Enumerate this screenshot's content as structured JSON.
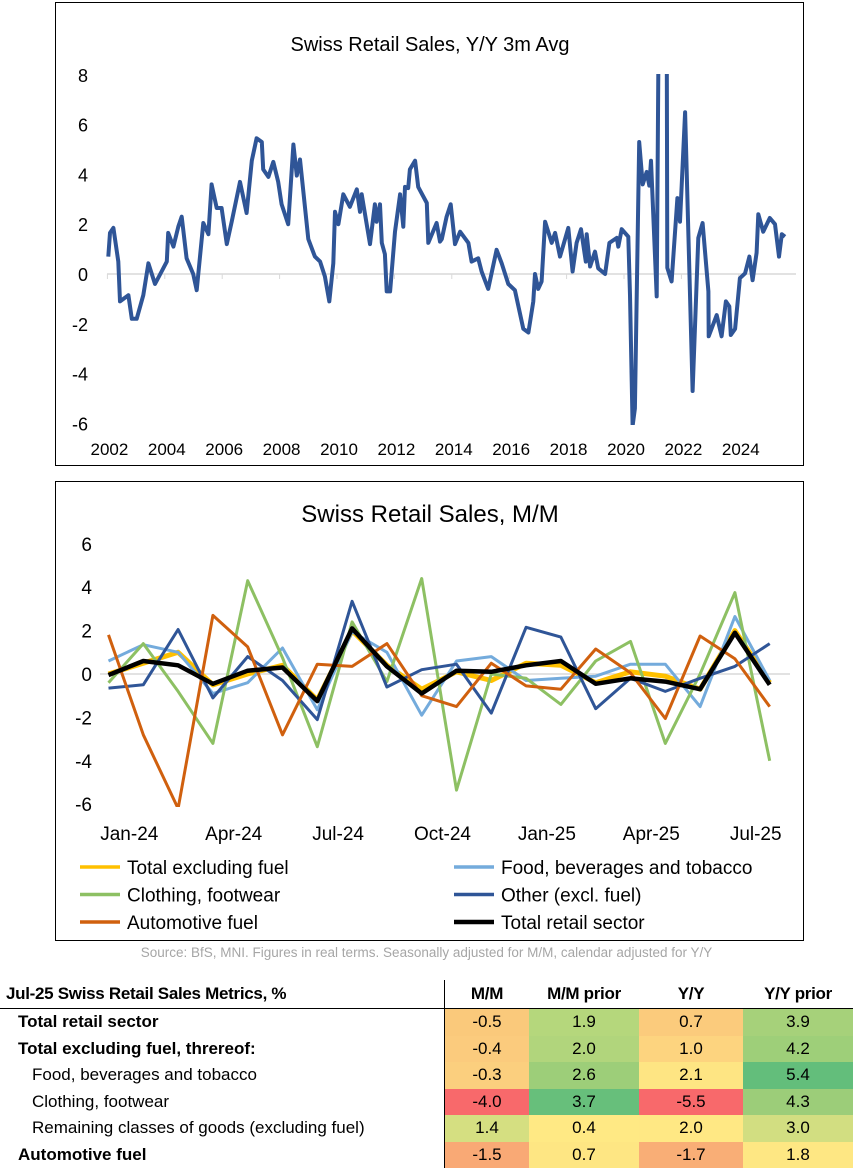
{
  "chart_data": [
    {
      "type": "line",
      "title": "Swiss Retail Sales, Y/Y 3m Avg",
      "xlim": [
        2002,
        2026
      ],
      "ylim": [
        -6,
        8
      ],
      "x_ticks": [
        "2002",
        "2004",
        "2006",
        "2008",
        "2010",
        "2012",
        "2014",
        "2016",
        "2018",
        "2020",
        "2022",
        "2024"
      ],
      "y_ticks": [
        "-6",
        "-4",
        "-2",
        "0",
        "2",
        "4",
        "6",
        "8"
      ],
      "grid": false,
      "line_color": "#2F5597",
      "points": [
        [
          2002.03,
          0.7
        ],
        [
          2002.09,
          1.65
        ],
        [
          2002.21,
          1.85
        ],
        [
          2002.38,
          0.5
        ],
        [
          2002.44,
          -1.1
        ],
        [
          2002.73,
          -0.85
        ],
        [
          2002.85,
          -1.8
        ],
        [
          2003.02,
          -1.8
        ],
        [
          2003.25,
          -0.85
        ],
        [
          2003.43,
          0.43
        ],
        [
          2003.66,
          -0.4
        ],
        [
          2003.89,
          0.1
        ],
        [
          2004.07,
          0.5
        ],
        [
          2004.12,
          1.65
        ],
        [
          2004.3,
          1.1
        ],
        [
          2004.47,
          1.9
        ],
        [
          2004.59,
          2.3
        ],
        [
          2004.76,
          0.63
        ],
        [
          2004.99,
          0
        ],
        [
          2005.11,
          -0.65
        ],
        [
          2005.34,
          2.05
        ],
        [
          2005.52,
          1.6
        ],
        [
          2005.63,
          3.6
        ],
        [
          2005.81,
          2.65
        ],
        [
          2005.98,
          2.65
        ],
        [
          2006.16,
          1.2
        ],
        [
          2006.33,
          2.1
        ],
        [
          2006.62,
          3.7
        ],
        [
          2006.85,
          2.45
        ],
        [
          2007.03,
          4.55
        ],
        [
          2007.2,
          5.45
        ],
        [
          2007.38,
          5.3
        ],
        [
          2007.43,
          4.2
        ],
        [
          2007.61,
          3.9
        ],
        [
          2007.78,
          4.5
        ],
        [
          2007.95,
          3.7
        ],
        [
          2008.07,
          2.8
        ],
        [
          2008.3,
          2.0
        ],
        [
          2008.48,
          5.2
        ],
        [
          2008.6,
          3.95
        ],
        [
          2008.71,
          4.6
        ],
        [
          2009.0,
          1.4
        ],
        [
          2009.23,
          0.7
        ],
        [
          2009.41,
          0.5
        ],
        [
          2009.58,
          -0.1
        ],
        [
          2009.73,
          -1.1
        ],
        [
          2009.87,
          0.43
        ],
        [
          2009.93,
          2.5
        ],
        [
          2010.05,
          2.0
        ],
        [
          2010.22,
          3.2
        ],
        [
          2010.45,
          2.7
        ],
        [
          2010.69,
          3.4
        ],
        [
          2010.8,
          2.5
        ],
        [
          2010.86,
          3.2
        ],
        [
          2011.15,
          1.2
        ],
        [
          2011.32,
          2.8
        ],
        [
          2011.38,
          2.1
        ],
        [
          2011.5,
          2.8
        ],
        [
          2011.56,
          1.25
        ],
        [
          2011.67,
          0.8
        ],
        [
          2011.73,
          -0.7
        ],
        [
          2011.85,
          -0.7
        ],
        [
          2012.02,
          1.7
        ],
        [
          2012.2,
          3.2
        ],
        [
          2012.31,
          1.9
        ],
        [
          2012.37,
          3.5
        ],
        [
          2012.48,
          3.45
        ],
        [
          2012.54,
          4.2
        ],
        [
          2012.72,
          4.55
        ],
        [
          2012.83,
          3.5
        ],
        [
          2013.13,
          2.85
        ],
        [
          2013.18,
          1.25
        ],
        [
          2013.47,
          2.05
        ],
        [
          2013.59,
          1.3
        ],
        [
          2013.65,
          1.4
        ],
        [
          2013.82,
          2.3
        ],
        [
          2013.96,
          2.8
        ],
        [
          2014.11,
          1.2
        ],
        [
          2014.29,
          1.7
        ],
        [
          2014.58,
          1.25
        ],
        [
          2014.69,
          0.5
        ],
        [
          2014.92,
          0.63
        ],
        [
          2015.04,
          0.1
        ],
        [
          2015.27,
          -0.6
        ],
        [
          2015.56,
          0.97
        ],
        [
          2015.74,
          0.43
        ],
        [
          2015.97,
          -0.4
        ],
        [
          2016.2,
          -0.65
        ],
        [
          2016.49,
          -2.2
        ],
        [
          2016.67,
          -2.35
        ],
        [
          2016.84,
          -1.1
        ],
        [
          2016.9,
          0
        ],
        [
          2017.01,
          -0.6
        ],
        [
          2017.13,
          -0.3
        ],
        [
          2017.25,
          2.1
        ],
        [
          2017.48,
          1.25
        ],
        [
          2017.6,
          1.65
        ],
        [
          2017.77,
          0.7
        ],
        [
          2018.06,
          1.85
        ],
        [
          2018.21,
          0.1
        ],
        [
          2018.35,
          1.25
        ],
        [
          2018.5,
          1.8
        ],
        [
          2018.67,
          0.5
        ],
        [
          2018.7,
          1.6
        ],
        [
          2018.82,
          0.3
        ],
        [
          2018.99,
          0.9
        ],
        [
          2019.1,
          0.23
        ],
        [
          2019.34,
          0
        ],
        [
          2019.49,
          1.25
        ],
        [
          2019.75,
          1.45
        ],
        [
          2019.8,
          1.1
        ],
        [
          2019.92,
          1.8
        ],
        [
          2020.15,
          1.5
        ],
        [
          2020.21,
          -0.85
        ],
        [
          2020.3,
          -6.1
        ],
        [
          2020.38,
          -5.4
        ],
        [
          2020.53,
          5.3
        ],
        [
          2020.65,
          3.6
        ],
        [
          2020.79,
          4.1
        ],
        [
          2020.88,
          3.55
        ],
        [
          2020.94,
          4.55
        ],
        [
          2021.14,
          -0.9
        ],
        [
          2021.2,
          8.6
        ],
        [
          2021.49,
          8.6
        ],
        [
          2021.51,
          0.25
        ],
        [
          2021.66,
          -0.3
        ],
        [
          2021.86,
          3.05
        ],
        [
          2021.95,
          2.1
        ],
        [
          2022.13,
          6.5
        ],
        [
          2022.39,
          -4.7
        ],
        [
          2022.59,
          1.45
        ],
        [
          2022.74,
          2.05
        ],
        [
          2022.94,
          -0.7
        ],
        [
          2022.95,
          -2.5
        ],
        [
          2023.23,
          -1.65
        ],
        [
          2023.4,
          -2.5
        ],
        [
          2023.55,
          -1.1
        ],
        [
          2023.67,
          -1.3
        ],
        [
          2023.72,
          -2.45
        ],
        [
          2023.87,
          -2.2
        ],
        [
          2024.04,
          -0.17
        ],
        [
          2024.22,
          0.03
        ],
        [
          2024.37,
          0.7
        ],
        [
          2024.48,
          -0.25
        ],
        [
          2024.62,
          0.85
        ],
        [
          2024.68,
          2.4
        ],
        [
          2024.85,
          1.7
        ],
        [
          2025.08,
          2.25
        ],
        [
          2025.26,
          2.0
        ],
        [
          2025.4,
          0.7
        ],
        [
          2025.5,
          1.6
        ],
        [
          2025.61,
          1.5
        ]
      ]
    },
    {
      "type": "line",
      "title": "Swiss Retail Sales, M/M",
      "ylim": [
        -6,
        6
      ],
      "y_ticks": [
        "-6",
        "-4",
        "-2",
        "0",
        "2",
        "4",
        "6"
      ],
      "categories": [
        "Dec-23",
        "Jan-24",
        "Feb-24",
        "Mar-24",
        "Apr-24",
        "May-24",
        "Jun-24",
        "Jul-24",
        "Aug-24",
        "Sep-24",
        "Oct-24",
        "Nov-24",
        "Dec-24",
        "Jan-25",
        "Feb-25",
        "Mar-25",
        "Apr-25",
        "May-25",
        "Jun-25",
        "Jul-25"
      ],
      "x_tick_labels": {
        "1": "Jan-24",
        "4": "Apr-24",
        "7": "Jul-24",
        "10": "Oct-24",
        "13": "Jan-25",
        "16": "Apr-25",
        "19": "Jul-25"
      },
      "grid": false,
      "legend_position": "bottom",
      "series": [
        {
          "name": "Total excluding fuel",
          "color": "#FFC000",
          "values": [
            0,
            0.5,
            1.0,
            -0.5,
            0,
            0.4,
            -1.2,
            2.0,
            0.4,
            -0.7,
            0.1,
            -0.3,
            0.5,
            0.4,
            -0.4,
            0.1,
            -0.1,
            -0.7,
            2.0,
            -0.4
          ]
        },
        {
          "name": "Food, beverages and tobacco",
          "color": "#74ABDC",
          "values": [
            0.6,
            1.35,
            1.0,
            -0.9,
            -0.4,
            1.2,
            -1.65,
            1.95,
            1.0,
            -1.9,
            0.6,
            0.8,
            -0.3,
            -0.2,
            -0.1,
            0.45,
            0.45,
            -1.5,
            2.65,
            -0.3
          ]
        },
        {
          "name": "Clothing, footwear",
          "color": "#8DC063",
          "values": [
            -0.4,
            1.4,
            -0.8,
            -3.2,
            4.3,
            0.75,
            -3.35,
            2.4,
            -0.35,
            4.4,
            -5.35,
            0,
            -0.2,
            -1.4,
            0.6,
            1.5,
            -3.2,
            0,
            3.75,
            -4.0
          ]
        },
        {
          "name": "Other (excl. fuel)",
          "color": "#2F5597",
          "values": [
            -0.65,
            -0.5,
            2.05,
            -1.1,
            0.8,
            -0.3,
            -2.1,
            3.35,
            -0.6,
            0.2,
            0.45,
            -1.8,
            2.15,
            1.7,
            -1.6,
            -0.2,
            -0.8,
            -0.2,
            0.35,
            1.4
          ]
        },
        {
          "name": "Automotive fuel",
          "color": "#D0600E",
          "values": [
            1.8,
            -2.8,
            -6.2,
            2.7,
            1.25,
            -2.8,
            0.45,
            0.35,
            1.4,
            -1.0,
            -1.5,
            0.5,
            -0.55,
            -0.7,
            1.15,
            0.05,
            -2.05,
            1.75,
            0.7,
            -1.5
          ]
        },
        {
          "name": "Total retail sector",
          "color": "#000000",
          "values": [
            -0.05,
            0.6,
            0.4,
            -0.45,
            0.15,
            0.3,
            -1.25,
            2.1,
            0.35,
            -0.9,
            0.15,
            0.1,
            0.4,
            0.6,
            -0.45,
            -0.2,
            -0.35,
            -0.7,
            1.9,
            -0.5
          ]
        }
      ]
    }
  ],
  "source": "Source: BfS, MNI. Figures in real terms. Seasonally adjusted for M/M, calendar adjusted for Y/Y",
  "table": {
    "title": "Jul-25 Swiss Retail Sales Metrics, %",
    "columns": [
      "M/M",
      "M/M prior",
      "Y/Y",
      "Y/Y prior"
    ],
    "rows": [
      {
        "label": "Total retail sector",
        "style": "b",
        "cells": [
          {
            "v": "-0.5",
            "c": "#FAC97B"
          },
          {
            "v": "1.9",
            "c": "#B5D77C"
          },
          {
            "v": "0.7",
            "c": "#FBCB7C"
          },
          {
            "v": "3.9",
            "c": "#A6D17A"
          }
        ]
      },
      {
        "label": "Total excluding fuel, threreof:",
        "style": "b",
        "cells": [
          {
            "v": "-0.4",
            "c": "#FBCB7D"
          },
          {
            "v": "2.0",
            "c": "#B1D57C"
          },
          {
            "v": "1.0",
            "c": "#FDD47F"
          },
          {
            "v": "4.2",
            "c": "#9ECF79"
          }
        ]
      },
      {
        "label": "Food, beverages and tobacco",
        "style": "i",
        "cells": [
          {
            "v": "-0.3",
            "c": "#FBCF7E"
          },
          {
            "v": "2.6",
            "c": "#9DCE79"
          },
          {
            "v": "2.1",
            "c": "#FEE583"
          },
          {
            "v": "5.4",
            "c": "#63BE7B"
          }
        ]
      },
      {
        "label": "Clothing, footwear",
        "style": "i",
        "cells": [
          {
            "v": "-4.0",
            "c": "#F8696B"
          },
          {
            "v": "3.7",
            "c": "#67BF7B"
          },
          {
            "v": "-5.5",
            "c": "#F8696B"
          },
          {
            "v": "4.3",
            "c": "#9CCD79"
          }
        ]
      },
      {
        "label": "Remaining classes of goods (excluding fuel)",
        "style": "i",
        "cells": [
          {
            "v": "1.4",
            "c": "#D5DF81"
          },
          {
            "v": "0.4",
            "c": "#FFE984"
          },
          {
            "v": "2.0",
            "c": "#FFE884"
          },
          {
            "v": "3.0",
            "c": "#D2DE81"
          }
        ]
      },
      {
        "label": "Automotive fuel",
        "style": "b",
        "cells": [
          {
            "v": "-1.5",
            "c": "#F9A975"
          },
          {
            "v": "0.7",
            "c": "#FEE683"
          },
          {
            "v": "-1.7",
            "c": "#F9AE76"
          },
          {
            "v": "1.8",
            "c": "#FEE783"
          }
        ]
      }
    ]
  }
}
